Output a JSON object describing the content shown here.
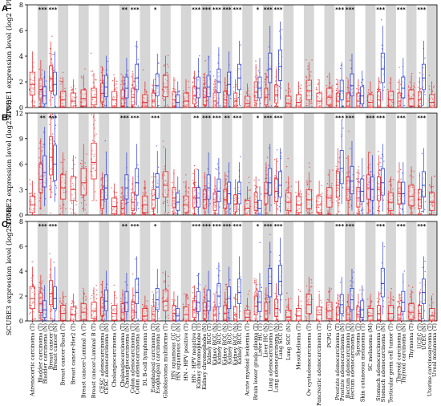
{
  "colors": {
    "tumor": "#e8262a",
    "normal": "#2b3fd6",
    "highlight": "#9b30d0",
    "shade": "#d6d6d6"
  },
  "chart_data": [
    {
      "type": "box",
      "panel": "A",
      "ylabel": "SCUBE1 expression level (log2 TPM)",
      "ylim": [
        0,
        8
      ],
      "yticks": [
        0,
        2,
        4,
        6,
        8
      ],
      "significance": [
        "",
        "***",
        "***",
        "",
        "",
        "",
        "",
        "",
        "",
        "**",
        "***",
        "",
        "*",
        "",
        "",
        "",
        "***",
        "***",
        "***",
        "***",
        "***",
        "",
        "*",
        "***",
        "***",
        "",
        "",
        "",
        "",
        "",
        "***",
        "***",
        "",
        "",
        "***",
        "",
        "***",
        "",
        "***",
        ""
      ],
      "tumor_medians": [
        1.8,
        1.4,
        2.2,
        0.6,
        0.5,
        0.7,
        0.8,
        1.1,
        0.6,
        0.7,
        0.8,
        0.4,
        0.5,
        1.6,
        0.6,
        0.5,
        0.9,
        0.8,
        0.5,
        0.6,
        0.5,
        0.3,
        1.2,
        0.8,
        1.0,
        0.3,
        0.4,
        1.3,
        0.5,
        0.8,
        0.5,
        0.5,
        0.5,
        0.4,
        0.6,
        0.6,
        0.5,
        0.7,
        0.6,
        0.4
      ],
      "normal_medians": [
        null,
        0.9,
        1.8,
        null,
        null,
        null,
        null,
        1.6,
        null,
        1.5,
        2.3,
        null,
        1.7,
        null,
        0.4,
        null,
        1.5,
        1.6,
        2.0,
        1.8,
        2.3,
        null,
        1.5,
        3.0,
        3.2,
        null,
        null,
        null,
        null,
        null,
        1.3,
        1.7,
        0.9,
        null,
        3.0,
        null,
        1.5,
        null,
        2.3,
        null
      ]
    },
    {
      "type": "box",
      "panel": "B",
      "ylabel": "SCUBE2 expression level (log2 TPM)",
      "ylim": [
        0,
        12
      ],
      "yticks": [
        0,
        3,
        6,
        9,
        12
      ],
      "significance": [
        "",
        "**",
        "***",
        "",
        "",
        "",
        "",
        "",
        "",
        "***",
        "***",
        "",
        "***",
        "",
        "",
        "",
        "**",
        "***",
        "***",
        "**",
        "***",
        "",
        "*",
        "***",
        "***",
        "",
        "",
        "",
        "",
        "",
        "***",
        "***",
        "",
        "***",
        "***",
        "",
        "***",
        "",
        "***",
        ""
      ],
      "tumor_medians": [
        1.2,
        4.2,
        6.8,
        3.2,
        3.0,
        3.8,
        6.2,
        1.8,
        1.0,
        0.8,
        1.5,
        1.2,
        1.8,
        3.5,
        2.0,
        1.2,
        2.0,
        1.8,
        1.5,
        1.8,
        1.3,
        0.8,
        1.5,
        2.5,
        2.8,
        1.5,
        1.2,
        1.8,
        1.2,
        2.0,
        3.5,
        3.0,
        2.0,
        3.2,
        3.0,
        1.5,
        2.5,
        2.2,
        1.8,
        1.5
      ],
      "normal_medians": [
        null,
        5.0,
        6.0,
        null,
        null,
        null,
        null,
        3.2,
        null,
        3.2,
        3.8,
        null,
        3.3,
        null,
        1.5,
        null,
        2.0,
        3.2,
        2.8,
        2.5,
        2.5,
        null,
        0.8,
        3.8,
        3.5,
        null,
        null,
        null,
        null,
        null,
        5.5,
        4.0,
        2.8,
        3.0,
        3.8,
        null,
        2.5,
        null,
        3.5,
        null
      ]
    },
    {
      "type": "box",
      "panel": "C",
      "ylabel": "SCUBE3 expression level (log2 TPM)",
      "ylim": [
        0,
        8
      ],
      "yticks": [
        0,
        2,
        4,
        6,
        8
      ],
      "significance": [
        "",
        "***",
        "***",
        "",
        "",
        "",
        "",
        "",
        "",
        "**",
        "***",
        "",
        "*",
        "",
        "",
        "",
        "***",
        "***",
        "***",
        "***",
        "***",
        "",
        "*",
        "***",
        "***",
        "",
        "",
        "",
        "",
        "",
        "***",
        "***",
        "",
        "",
        "***",
        "",
        "***",
        "",
        "***",
        ""
      ],
      "tumor_medians": [
        1.8,
        1.4,
        2.2,
        0.6,
        0.5,
        0.7,
        0.8,
        1.1,
        0.6,
        0.7,
        0.8,
        0.4,
        0.5,
        1.6,
        0.6,
        0.5,
        0.9,
        0.8,
        0.5,
        0.6,
        0.5,
        0.3,
        1.2,
        0.8,
        1.0,
        0.3,
        0.4,
        1.3,
        0.5,
        0.8,
        0.5,
        0.5,
        0.5,
        0.4,
        0.6,
        0.6,
        0.5,
        0.7,
        0.6,
        0.4
      ],
      "normal_medians": [
        null,
        0.9,
        1.8,
        null,
        null,
        null,
        null,
        1.6,
        null,
        1.5,
        2.3,
        null,
        1.7,
        null,
        0.4,
        null,
        1.5,
        1.6,
        2.0,
        1.8,
        2.3,
        null,
        1.5,
        3.0,
        3.2,
        null,
        null,
        null,
        null,
        null,
        1.3,
        1.7,
        0.9,
        null,
        3.0,
        null,
        1.5,
        null,
        2.3,
        null
      ]
    }
  ],
  "categories": [
    [
      "Adrenocortic carcinoma (T)"
    ],
    [
      "Bladder carcinoma (T)",
      "Bladder carcinoma (N)"
    ],
    [
      "Breast cancer (T)",
      "Breast cancer (N)"
    ],
    [
      "Breast cancer-Basal (T)"
    ],
    [
      "Breast cancer-Her2 (T)"
    ],
    [
      "Breast cancer-Luminal A (T)"
    ],
    [
      "Breast cancer-Luminal B (T)"
    ],
    [
      "CESC adenocarcinoma (T)",
      "CESC adenocarcinoma (N)"
    ],
    [
      "Cholangiocarcinoma (T)"
    ],
    [
      "Cholangiocarcinoma (T)",
      "Cholangiocarcinoma (N)"
    ],
    [
      "Colon adenocarcinoma (T)",
      "Colon adenocarcinoma (N)"
    ],
    [
      "DL B-cell lymphoma (T)"
    ],
    [
      "Esophageal carcinoma (T)",
      "Esophageal carcinoma (N)"
    ],
    [
      "Glioblastoma multiforme (T)"
    ],
    [
      "HN squamous CC (T)",
      "HN squamous CC (N)"
    ],
    [
      "HN - HPV positive (T)"
    ],
    [
      "HN - HPV negative (T)",
      "Kidney chromophobe (T)"
    ],
    [
      "Kidney chromophobe (N)",
      "Kidney RCC (T)"
    ],
    [
      "Kidney RCC (N)",
      "Kidney RCC (T)"
    ],
    [
      "Kidney RCC (N)",
      "Kidney RCC (T)"
    ],
    [
      "Kidney RCC (N)",
      "Kidney RCC (T)"
    ],
    [
      "Acute myeloid leukemia (T)"
    ],
    [
      "Brain lower grade glioma (T)",
      "Liver HC (T)"
    ],
    [
      "Liver HC (N)",
      "Lung adenocarcinoma (T)"
    ],
    [
      "Lung adenocarcinoma (N)",
      "Lung SCC (T)"
    ],
    [
      "Lung SCC (N)"
    ],
    [
      "Mesothelioma (T)"
    ],
    [
      "Ov cystadenocarcinoma (T)"
    ],
    [
      "Pancreatic adenocarcinoma (T)"
    ],
    [
      "PCPG (T)"
    ],
    [
      "Prostate adenocarcinoma (T)",
      "Prostate adenocarcinoma (N)"
    ],
    [
      "Rectum adenocarcinoma (T)",
      "Rectum adenocarcinoma (N)"
    ],
    [
      "Sarcoma (T)",
      "Skin cutaneous melanoma (T)"
    ],
    [
      "SC melanoma (M)"
    ],
    [
      "Stomach adenocarcinoma (T)",
      "Stomach adenocarcinoma (N)"
    ],
    [
      "Testicular germ cell tumor (T)"
    ],
    [
      "Thyroid carcinoma (T)",
      "Thyroid carcinoma (N)"
    ],
    [
      "Thymoma (T)"
    ],
    [
      "UCEC (T)",
      "UCEC (N)"
    ],
    [
      "Uterine carcinosarcoma (T)",
      "Uveal melanoma (T)"
    ]
  ]
}
